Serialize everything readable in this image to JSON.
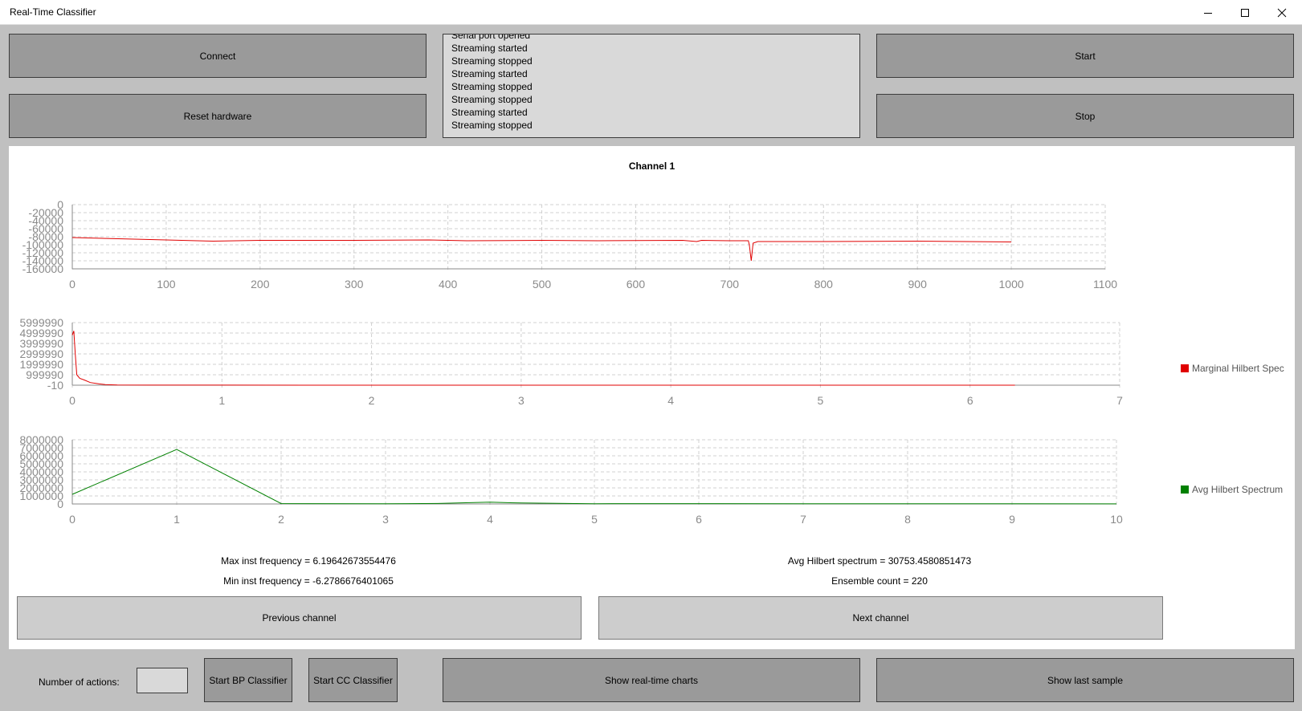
{
  "window": {
    "title": "Real-Time Classifier"
  },
  "buttons": {
    "connect": "Connect",
    "reset_hardware": "Reset hardware",
    "start": "Start",
    "stop": "Stop",
    "previous_channel": "Previous channel",
    "next_channel": "Next channel",
    "start_bp": "Start BP Classifier",
    "start_cc": "Start CC Classifier",
    "show_realtime": "Show real-time charts",
    "show_last_sample": "Show last sample"
  },
  "log": {
    "lines": [
      "Serial port opened",
      "Streaming started",
      "Streaming stopped",
      "Streaming started",
      "Streaming stopped",
      "Streaming stopped",
      "Streaming started",
      "Streaming stopped"
    ]
  },
  "panel": {
    "channel_title": "Channel 1"
  },
  "stats": {
    "max_inst_freq": "Max inst frequency = 6.19642673554476",
    "min_inst_freq": "Min inst frequency = -6.2786676401065",
    "avg_hilbert": "Avg Hilbert spectrum = 30753.4580851473",
    "ensemble_count": "Ensemble count = 220"
  },
  "bottom": {
    "num_actions_label": "Number of actions:",
    "num_actions_value": ""
  },
  "icons": [
    "minimize-icon",
    "maximize-icon",
    "close-icon"
  ],
  "colors": {
    "signal": "#e00000",
    "marginal": "#e00000",
    "avg": "#008000",
    "button_dark": "#9a9a9a",
    "button_light": "#cdcdcd"
  },
  "chart_data": [
    {
      "type": "line",
      "title": "Channel 1",
      "x_ticks": [
        0,
        100,
        200,
        300,
        400,
        500,
        600,
        700,
        800,
        900,
        1000,
        1100
      ],
      "y_ticks": [
        "0",
        "-20000",
        "-40000",
        "-60000",
        "-80000",
        "-100000",
        "-120000",
        "-140000",
        "-160000"
      ],
      "xlim": [
        0,
        1100
      ],
      "ylim": [
        -160000,
        0
      ],
      "grid": true,
      "series": [
        {
          "color": "#e00000",
          "points": [
            [
              0,
              -82000
            ],
            [
              100,
              -88000
            ],
            [
              150,
              -91000
            ],
            [
              200,
              -89000
            ],
            [
              300,
              -89000
            ],
            [
              380,
              -88000
            ],
            [
              420,
              -90000
            ],
            [
              500,
              -89000
            ],
            [
              560,
              -90000
            ],
            [
              650,
              -89000
            ],
            [
              665,
              -92000
            ],
            [
              670,
              -89000
            ],
            [
              700,
              -90000
            ],
            [
              720,
              -90000
            ],
            [
              721,
              -100000
            ],
            [
              723,
              -140000
            ],
            [
              725,
              -96000
            ],
            [
              730,
              -92000
            ],
            [
              800,
              -92000
            ],
            [
              900,
              -91000
            ],
            [
              1000,
              -93000
            ]
          ]
        }
      ]
    },
    {
      "type": "line",
      "x_ticks": [
        0,
        1,
        2,
        3,
        4,
        5,
        6,
        7
      ],
      "y_ticks": [
        "5999990",
        "4999990",
        "3999990",
        "2999990",
        "1999990",
        "999990",
        "-10"
      ],
      "xlim": [
        0,
        7
      ],
      "ylim": [
        -10,
        5999990
      ],
      "grid": true,
      "series": [
        {
          "name": "Marginal Hilbert Spec",
          "color": "#e00000",
          "points": [
            [
              0,
              4800000
            ],
            [
              0.01,
              5200000
            ],
            [
              0.02,
              3000000
            ],
            [
              0.03,
              1000000
            ],
            [
              0.05,
              650000
            ],
            [
              0.08,
              500000
            ],
            [
              0.12,
              250000
            ],
            [
              0.18,
              120000
            ],
            [
              0.22,
              60000
            ],
            [
              0.3,
              20000
            ],
            [
              0.5,
              8000
            ],
            [
              1,
              4000
            ],
            [
              2,
              2000
            ],
            [
              3,
              1000
            ],
            [
              4,
              500
            ],
            [
              5,
              300
            ],
            [
              6,
              200
            ],
            [
              6.3,
              100
            ]
          ]
        }
      ]
    },
    {
      "type": "line",
      "x_ticks": [
        0,
        1,
        2,
        3,
        4,
        5,
        6,
        7,
        8,
        9,
        10
      ],
      "y_ticks": [
        "8000000",
        "7000000",
        "6000000",
        "5000000",
        "4000000",
        "3000000",
        "2000000",
        "1000000",
        "0"
      ],
      "xlim": [
        0,
        10
      ],
      "ylim": [
        0,
        8000000
      ],
      "grid": true,
      "series": [
        {
          "name": "Avg Hilbert Spectrum",
          "color": "#008000",
          "points": [
            [
              0,
              1200000
            ],
            [
              1,
              6800000
            ],
            [
              2,
              50000
            ],
            [
              3,
              20000
            ],
            [
              3.5,
              60000
            ],
            [
              4,
              220000
            ],
            [
              4.3,
              120000
            ],
            [
              5,
              30000
            ],
            [
              6,
              40000
            ],
            [
              7,
              20000
            ],
            [
              8,
              30000
            ],
            [
              9,
              20000
            ],
            [
              10,
              10000
            ]
          ]
        }
      ]
    }
  ]
}
